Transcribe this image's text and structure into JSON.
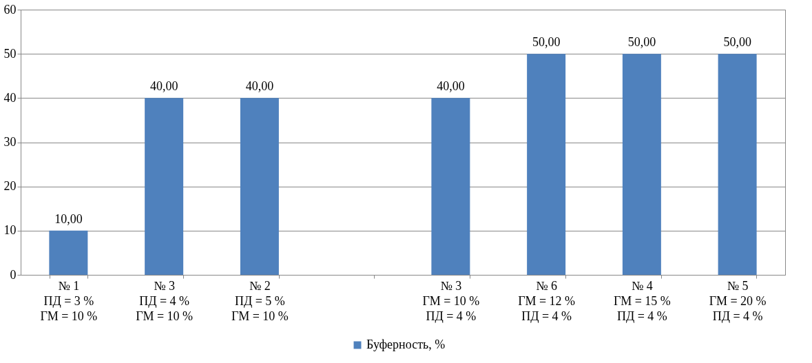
{
  "chart_data": {
    "type": "bar",
    "categories": [
      "№ 1\nПД = 3 %\nГМ = 10 %",
      "№ 3\nПД = 4 %\nГМ = 10 %",
      "№ 2\nПД = 5 %\nГМ = 10 %",
      null,
      "№ 3\nГМ = 10 %\nПД = 4 %",
      "№ 6\nГМ = 12 %\nПД = 4 %",
      "№ 4\nГМ = 15 %\nПД = 4 %",
      "№ 5\nГМ = 20 %\nПД = 4 %"
    ],
    "series": [
      {
        "name": "Буферность, %",
        "color": "#4f81bd",
        "values": [
          10,
          40,
          40,
          null,
          40,
          50,
          50,
          50
        ],
        "value_labels": [
          "10,00",
          "40,00",
          "40,00",
          null,
          "40,00",
          "50,00",
          "50,00",
          "50,00"
        ]
      }
    ],
    "ylim": [
      0,
      60
    ],
    "yticks": [
      0,
      10,
      20,
      30,
      40,
      50,
      60
    ],
    "grid": "y",
    "legend": "bottom"
  }
}
